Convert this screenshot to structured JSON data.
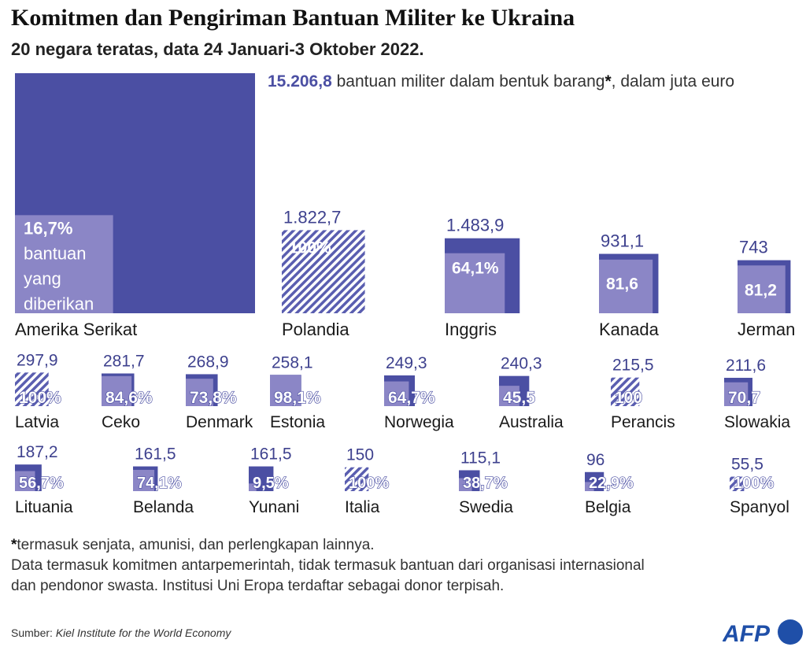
{
  "title": "Komitmen dan Pengiriman Bantuan Militer ke Ukraina",
  "subtitle": "20 negara teratas, data 24 Januari-3 Oktober 2022.",
  "headline": {
    "value": "15.206,8",
    "text": "bantuan militer dalam bentuk barang",
    "star": "*",
    "unit": ", dalam juta euro"
  },
  "colors": {
    "committed": "#4b4fa3",
    "delivered": "#8b86c6",
    "hatch_line": "#5a5eb0",
    "text": "#1a1a1a",
    "logo": "#1f4fa8"
  },
  "chart_data": {
    "type": "nested-square",
    "title": "Komitmen dan Pengiriman Bantuan Militer ke Ukraina",
    "subtitle": "20 negara teratas, data 24 Januari-3 Oktober 2022.",
    "unit": "juta euro",
    "encoding": "Outer square area = committed military aid in kind; inner square = share delivered (percent)",
    "countries": [
      {
        "name": "Amerika Serikat",
        "value": 15206.8,
        "value_label": "",
        "delivered_pct": 16.7,
        "pct_label": "16,7%",
        "pct_note": "bantuan yang diberikan"
      },
      {
        "name": "Polandia",
        "value": 1822.7,
        "value_label": "1.822,7",
        "delivered_pct": 100,
        "pct_label": "100%"
      },
      {
        "name": "Inggris",
        "value": 1483.9,
        "value_label": "1.483,9",
        "delivered_pct": 64.1,
        "pct_label": "64,1%"
      },
      {
        "name": "Kanada",
        "value": 931.1,
        "value_label": "931,1",
        "delivered_pct": 81.6,
        "pct_label": "81,6"
      },
      {
        "name": "Jerman",
        "value": 743,
        "value_label": "743",
        "delivered_pct": 81.2,
        "pct_label": "81,2"
      },
      {
        "name": "Latvia",
        "value": 297.9,
        "value_label": "297,9",
        "delivered_pct": 100,
        "pct_label": "100%"
      },
      {
        "name": "Ceko",
        "value": 281.7,
        "value_label": "281,7",
        "delivered_pct": 84.6,
        "pct_label": "84,6%"
      },
      {
        "name": "Denmark",
        "value": 268.9,
        "value_label": "268,9",
        "delivered_pct": 73.8,
        "pct_label": "73,8%"
      },
      {
        "name": "Estonia",
        "value": 258.1,
        "value_label": "258,1",
        "delivered_pct": 98.1,
        "pct_label": "98,1%"
      },
      {
        "name": "Norwegia",
        "value": 249.3,
        "value_label": "249,3",
        "delivered_pct": 64.7,
        "pct_label": "64,7%"
      },
      {
        "name": "Australia",
        "value": 240.3,
        "value_label": "240,3",
        "delivered_pct": 45.5,
        "pct_label": "45,5"
      },
      {
        "name": "Perancis",
        "value": 215.5,
        "value_label": "215,5",
        "delivered_pct": 100,
        "pct_label": "100"
      },
      {
        "name": "Slowakia",
        "value": 211.6,
        "value_label": "211,6",
        "delivered_pct": 70.7,
        "pct_label": "70,7"
      },
      {
        "name": "Lituania",
        "value": 187.2,
        "value_label": "187,2",
        "delivered_pct": 56.7,
        "pct_label": "56,7%"
      },
      {
        "name": "Belanda",
        "value": 161.5,
        "value_label": "161,5",
        "delivered_pct": 74.1,
        "pct_label": "74,1%"
      },
      {
        "name": "Yunani",
        "value": 161.5,
        "value_label": "161,5",
        "delivered_pct": 9.5,
        "pct_label": "9,5%"
      },
      {
        "name": "Italia",
        "value": 150,
        "value_label": "150",
        "delivered_pct": 100,
        "pct_label": "100%"
      },
      {
        "name": "Swedia",
        "value": 115.1,
        "value_label": "115,1",
        "delivered_pct": 38.7,
        "pct_label": "38,7%"
      },
      {
        "name": "Belgia",
        "value": 96,
        "value_label": "96",
        "delivered_pct": 22.9,
        "pct_label": "22,9%"
      },
      {
        "name": "Spanyol",
        "value": 55.5,
        "value_label": "55,5",
        "delivered_pct": 100,
        "pct_label": "100%"
      }
    ]
  },
  "notes": {
    "star": "*",
    "line1": "termasuk senjata, amunisi, dan perlengkapan lainnya.",
    "line2": "Data termasuk komitmen antarpemerintah, tidak termasuk bantuan dari organisasi internasional",
    "line3": "dan pendonor swasta. Institusi Uni Eropa terdaftar sebagai donor terpisah."
  },
  "source": {
    "label": "Sumber:",
    "name": "Kiel Institute for the World Economy"
  },
  "logo": {
    "text": "AFP"
  }
}
